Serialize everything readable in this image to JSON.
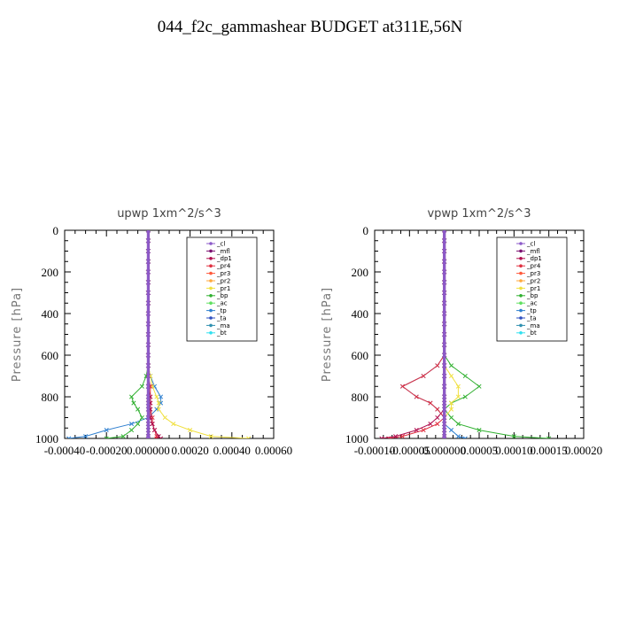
{
  "title": "044_f2c_gammashear  BUDGET at311E,56N",
  "legend_entries": [
    {
      "name": "_cl",
      "color": "#8c5ac8"
    },
    {
      "name": "_mfl",
      "color": "#7a1070"
    },
    {
      "name": "_dp1",
      "color": "#b01050"
    },
    {
      "name": "_pr4",
      "color": "#e03040"
    },
    {
      "name": "_pr3",
      "color": "#ff5a3c"
    },
    {
      "name": "_pr2",
      "color": "#ffa83c"
    },
    {
      "name": "_pr1",
      "color": "#f0e040"
    },
    {
      "name": "_bp",
      "color": "#30b030"
    },
    {
      "name": "_ac",
      "color": "#60e060"
    },
    {
      "name": "_tp",
      "color": "#3080d0"
    },
    {
      "name": "_ta",
      "color": "#3050c0"
    },
    {
      "name": "_ma",
      "color": "#3090b0"
    },
    {
      "name": "_bt",
      "color": "#30e0f0"
    }
  ],
  "chart_data": [
    {
      "type": "line",
      "title": "upwp   1xm^2/s^3",
      "ylabel": "Pressure [hPa]",
      "xlabel": "",
      "xlim": [
        -0.0004,
        0.0006
      ],
      "ylim": [
        1000,
        0
      ],
      "y_reversed": true,
      "xticks": [
        -0.0004,
        -0.0002,
        0.0,
        0.0002,
        0.0004,
        0.0006
      ],
      "xtick_labels": [
        "-0.00040",
        "-0.00020",
        "0.000000",
        "0.00020",
        "0.00040",
        "0.00060"
      ],
      "yticks": [
        0,
        200,
        400,
        600,
        800,
        1000
      ],
      "ytick_labels": [
        "0",
        "200",
        "400",
        "600",
        "800",
        "1000"
      ],
      "legend_position": "top-right",
      "pressure": [
        0,
        50,
        100,
        150,
        200,
        250,
        300,
        350,
        400,
        450,
        500,
        550,
        600,
        650,
        700,
        750,
        800,
        830,
        860,
        900,
        930,
        960,
        990,
        1000
      ],
      "series": [
        {
          "name": "_cl",
          "color": "#8c5ac8",
          "values": [
            0,
            0,
            0,
            0,
            0,
            0,
            0,
            0,
            0,
            0,
            0,
            0,
            0,
            0,
            0,
            0,
            0,
            0,
            0,
            0,
            0,
            0,
            0,
            0
          ]
        },
        {
          "name": "_mfl",
          "color": "#7a1070",
          "values": [
            0,
            0,
            0,
            0,
            0,
            0,
            0,
            0,
            0,
            0,
            0,
            0,
            0,
            0,
            0,
            0,
            0,
            0,
            0,
            0,
            0,
            0,
            0,
            0
          ]
        },
        {
          "name": "_dp1",
          "color": "#b01050",
          "values": [
            0,
            0,
            0,
            0,
            0,
            0,
            0,
            0,
            0,
            0,
            0,
            0,
            0,
            0,
            0,
            0,
            1e-05,
            1e-05,
            1e-05,
            1e-05,
            2e-05,
            3e-05,
            5e-05,
            6e-05
          ]
        },
        {
          "name": "_pr4",
          "color": "#e03040",
          "values": [
            0,
            0,
            0,
            0,
            0,
            0,
            0,
            0,
            0,
            0,
            0,
            0,
            0,
            0,
            0,
            1e-05,
            1e-05,
            1e-05,
            1e-05,
            2e-05,
            2e-05,
            3e-05,
            4e-05,
            4e-05
          ]
        },
        {
          "name": "_pr3",
          "color": "#ff5a3c",
          "values": [
            0,
            0,
            0,
            0,
            0,
            0,
            0,
            0,
            0,
            0,
            0,
            0,
            0,
            0,
            0,
            0,
            0,
            0,
            0,
            0,
            0,
            0,
            0,
            0
          ]
        },
        {
          "name": "_pr2",
          "color": "#ffa83c",
          "values": [
            0,
            0,
            0,
            0,
            0,
            0,
            0,
            0,
            0,
            0,
            0,
            0,
            0,
            0,
            0,
            0,
            0,
            0,
            0,
            0,
            0,
            0,
            0,
            0
          ]
        },
        {
          "name": "_pr1",
          "color": "#f0e040",
          "values": [
            0,
            0,
            0,
            0,
            0,
            0,
            0,
            0,
            0,
            0,
            0,
            0,
            0,
            0,
            1e-05,
            2e-05,
            4e-05,
            5e-05,
            5e-05,
            8e-05,
            0.00012,
            0.0002,
            0.0003,
            0.00048
          ]
        },
        {
          "name": "_bp",
          "color": "#30b030",
          "values": [
            0,
            0,
            0,
            0,
            0,
            0,
            0,
            0,
            0,
            0,
            0,
            0,
            0,
            0,
            -1e-05,
            -3e-05,
            -8e-05,
            -7e-05,
            -5e-05,
            -3e-05,
            -5e-05,
            -8e-05,
            -0.00012,
            -0.0002
          ]
        },
        {
          "name": "_ac",
          "color": "#60e060",
          "values": [
            0,
            0,
            0,
            0,
            0,
            0,
            0,
            0,
            0,
            0,
            0,
            0,
            0,
            0,
            0,
            0,
            0,
            0,
            0,
            0,
            0,
            0,
            0,
            0
          ]
        },
        {
          "name": "_tp",
          "color": "#3080d0",
          "values": [
            0,
            0,
            0,
            0,
            0,
            0,
            0,
            0,
            0,
            0,
            0,
            0,
            0,
            0,
            1e-05,
            3e-05,
            6e-05,
            6e-05,
            4e-05,
            0,
            -8e-05,
            -0.0002,
            -0.0003,
            -0.00038
          ]
        },
        {
          "name": "_ta",
          "color": "#3050c0",
          "values": [
            0,
            0,
            0,
            0,
            0,
            0,
            0,
            0,
            0,
            0,
            0,
            0,
            0,
            0,
            0,
            0,
            0,
            0,
            0,
            0,
            0,
            0,
            0,
            0
          ]
        },
        {
          "name": "_ma",
          "color": "#3090b0",
          "values": [
            0,
            0,
            0,
            0,
            0,
            0,
            0,
            0,
            0,
            0,
            0,
            0,
            0,
            0,
            0,
            0,
            0,
            0,
            0,
            0,
            0,
            0,
            0,
            0
          ]
        },
        {
          "name": "_bt",
          "color": "#30e0f0",
          "values": [
            0,
            0,
            0,
            0,
            0,
            0,
            0,
            0,
            0,
            0,
            0,
            0,
            0,
            0,
            0,
            0,
            0,
            0,
            0,
            0,
            0,
            0,
            0,
            0
          ]
        }
      ]
    },
    {
      "type": "line",
      "title": "vpwp   1xm^2/s^3",
      "ylabel": "Pressure [hPa]",
      "xlabel": "",
      "xlim": [
        -0.0001,
        0.0002
      ],
      "ylim": [
        1000,
        0
      ],
      "y_reversed": true,
      "xticks": [
        -0.0001,
        -5e-05,
        0.0,
        5e-05,
        0.0001,
        0.00015,
        0.0002
      ],
      "xtick_labels": [
        "-0.00010",
        "-0.00005",
        "0.000000",
        "0.00005",
        "0.00010",
        "0.00015",
        "0.00020"
      ],
      "yticks": [
        0,
        200,
        400,
        600,
        800,
        1000
      ],
      "ytick_labels": [
        "0",
        "200",
        "400",
        "600",
        "800",
        "1000"
      ],
      "legend_position": "top-right",
      "pressure": [
        0,
        50,
        100,
        150,
        200,
        250,
        300,
        350,
        400,
        450,
        500,
        550,
        600,
        650,
        700,
        750,
        800,
        830,
        860,
        900,
        930,
        960,
        990,
        1000
      ],
      "series": [
        {
          "name": "_cl",
          "color": "#8c5ac8",
          "values": [
            0,
            0,
            0,
            0,
            0,
            0,
            0,
            0,
            0,
            0,
            0,
            0,
            0,
            0,
            0,
            0,
            0,
            0,
            0,
            0,
            0,
            0,
            0,
            0
          ]
        },
        {
          "name": "_mfl",
          "color": "#7a1070",
          "values": [
            0,
            0,
            0,
            0,
            0,
            0,
            0,
            0,
            0,
            0,
            0,
            0,
            0,
            0,
            0,
            0,
            0,
            0,
            0,
            0,
            0,
            0,
            0,
            0
          ]
        },
        {
          "name": "_dp1",
          "color": "#b01050",
          "values": [
            0,
            0,
            0,
            0,
            0,
            0,
            0,
            0,
            0,
            0,
            0,
            0,
            0,
            0,
            0,
            0,
            0,
            0,
            0,
            -1e-05,
            -2e-05,
            -4e-05,
            -7e-05,
            -9e-05
          ]
        },
        {
          "name": "_pr4",
          "color": "#e03040",
          "values": [
            0,
            0,
            0,
            0,
            0,
            0,
            0,
            0,
            0,
            0,
            0,
            0,
            0,
            -1e-05,
            -3e-05,
            -6e-05,
            -4e-05,
            -2e-05,
            -1e-05,
            0,
            -1e-05,
            -3e-05,
            -6e-05,
            -8e-05
          ]
        },
        {
          "name": "_pr3",
          "color": "#ff5a3c",
          "values": [
            0,
            0,
            0,
            0,
            0,
            0,
            0,
            0,
            0,
            0,
            0,
            0,
            0,
            0,
            0,
            0,
            0,
            0,
            0,
            0,
            0,
            0,
            0,
            0
          ]
        },
        {
          "name": "_pr2",
          "color": "#ffa83c",
          "values": [
            0,
            0,
            0,
            0,
            0,
            0,
            0,
            0,
            0,
            0,
            0,
            0,
            0,
            0,
            0,
            0,
            0,
            0,
            0,
            0,
            0,
            0,
            0,
            0
          ]
        },
        {
          "name": "_pr1",
          "color": "#f0e040",
          "values": [
            0,
            0,
            0,
            0,
            0,
            0,
            0,
            0,
            0,
            0,
            0,
            0,
            0,
            0,
            1e-05,
            2e-05,
            2e-05,
            1e-05,
            1e-05,
            0,
            0,
            0,
            0,
            0
          ]
        },
        {
          "name": "_bp",
          "color": "#30b030",
          "values": [
            0,
            0,
            0,
            0,
            0,
            0,
            0,
            0,
            0,
            0,
            0,
            0,
            0,
            1e-05,
            3e-05,
            5e-05,
            3e-05,
            1e-05,
            0,
            1e-05,
            2e-05,
            5e-05,
            0.0001,
            0.00015
          ]
        },
        {
          "name": "_ac",
          "color": "#60e060",
          "values": [
            0,
            0,
            0,
            0,
            0,
            0,
            0,
            0,
            0,
            0,
            0,
            0,
            0,
            0,
            0,
            0,
            0,
            0,
            0,
            0,
            0,
            0,
            0,
            0
          ]
        },
        {
          "name": "_tp",
          "color": "#3080d0",
          "values": [
            0,
            0,
            0,
            0,
            0,
            0,
            0,
            0,
            0,
            0,
            0,
            0,
            0,
            -1e-05,
            -3e-05,
            -6e-05,
            -4e-05,
            -2e-05,
            -1e-05,
            0,
            0,
            1e-05,
            2e-05,
            3e-05
          ]
        },
        {
          "name": "_ta",
          "color": "#3050c0",
          "values": [
            0,
            0,
            0,
            0,
            0,
            0,
            0,
            0,
            0,
            0,
            0,
            0,
            0,
            0,
            0,
            0,
            0,
            0,
            0,
            0,
            0,
            0,
            0,
            0
          ]
        },
        {
          "name": "_ma",
          "color": "#3090b0",
          "values": [
            0,
            0,
            0,
            0,
            0,
            0,
            0,
            0,
            0,
            0,
            0,
            0,
            0,
            0,
            0,
            0,
            0,
            0,
            0,
            0,
            0,
            0,
            0,
            0
          ]
        },
        {
          "name": "_bt",
          "color": "#30e0f0",
          "values": [
            0,
            0,
            0,
            0,
            0,
            0,
            0,
            0,
            0,
            0,
            0,
            0,
            0,
            0,
            0,
            0,
            0,
            0,
            0,
            0,
            0,
            0,
            0,
            0
          ]
        }
      ]
    }
  ]
}
